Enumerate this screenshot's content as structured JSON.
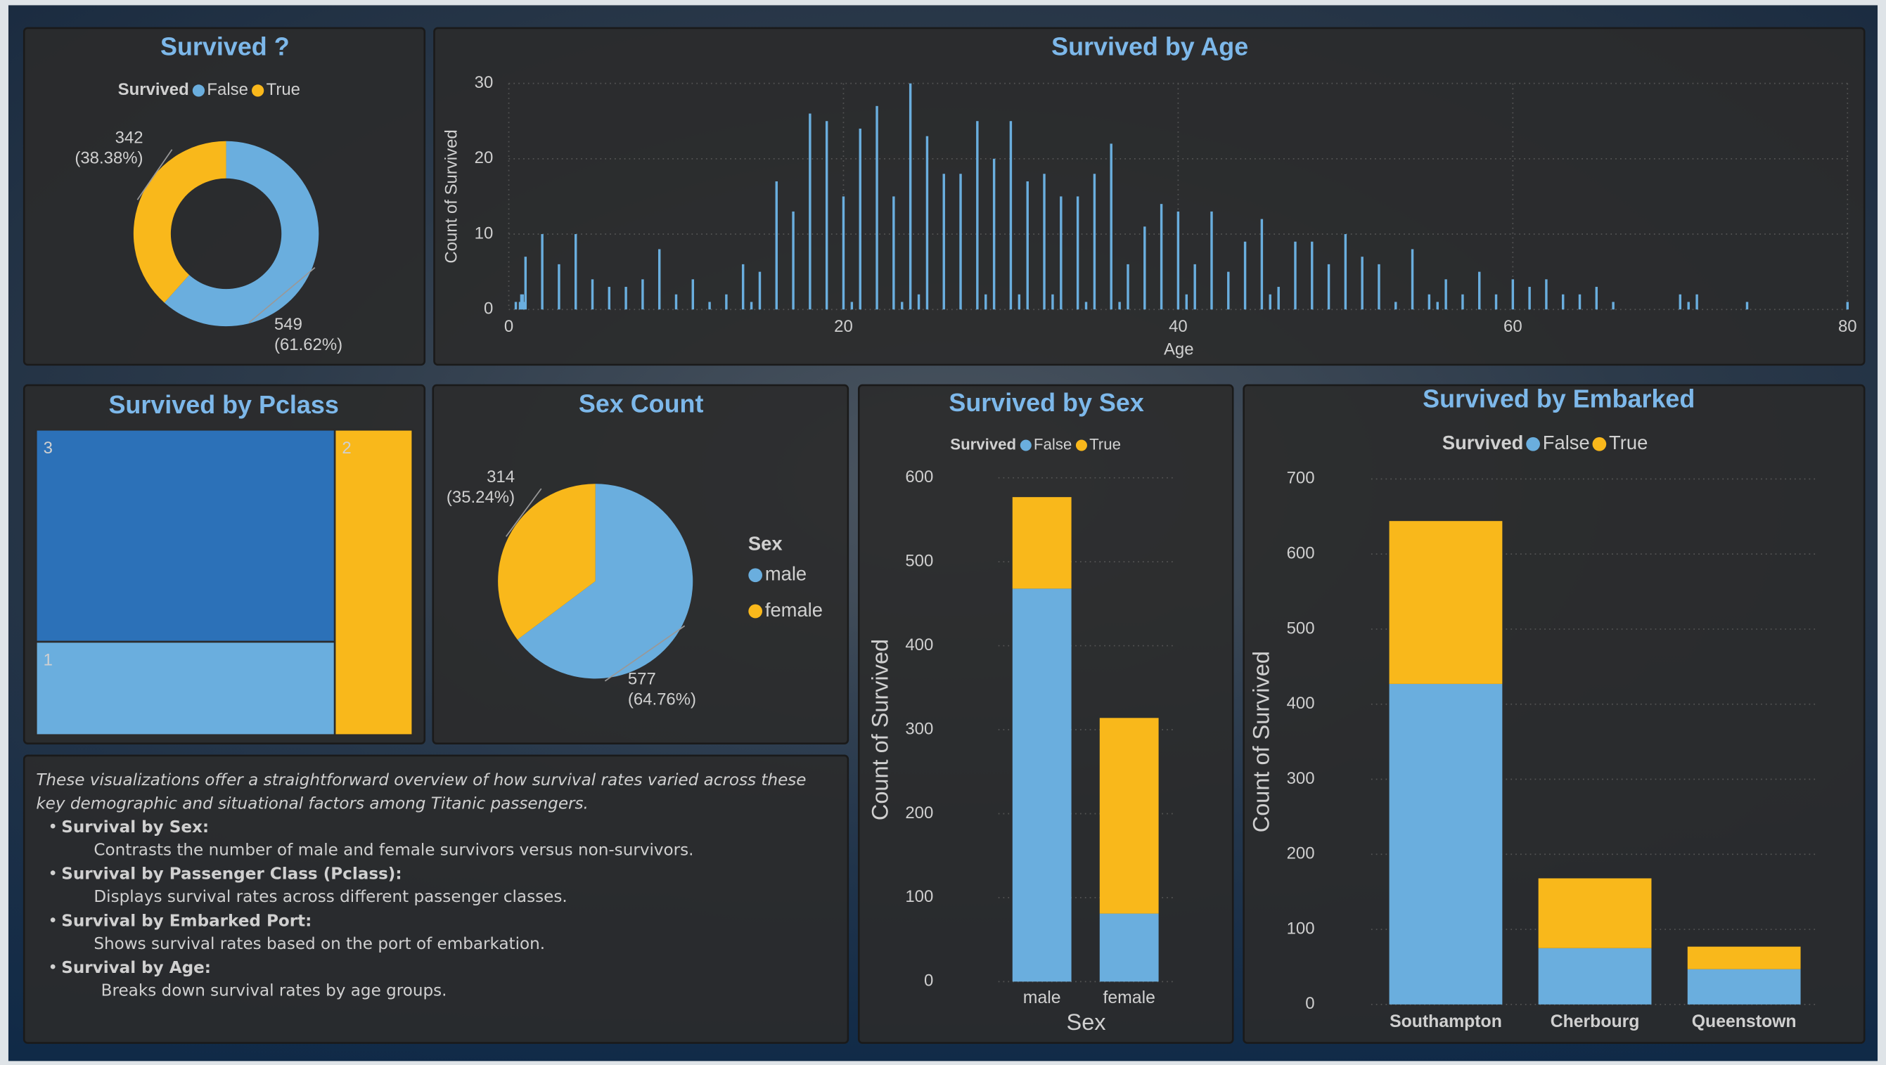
{
  "chart_data": [
    {
      "type": "donut",
      "title": "Survived ?",
      "legend_title": "Survived",
      "categories": [
        "False",
        "True"
      ],
      "values": [
        549,
        342
      ],
      "percents": [
        61.62,
        38.38
      ],
      "percent_labels": [
        "(61.62%)",
        "(38.38%)"
      ],
      "colors": [
        "#6aaede",
        "#f9b81b"
      ]
    },
    {
      "type": "bar",
      "title": "Survived by Age",
      "x_label": "Age",
      "y_label": "Count of Survived",
      "x": [
        0.42,
        0.67,
        0.75,
        0.83,
        0.92,
        1,
        2,
        3,
        4,
        5,
        6,
        7,
        8,
        9,
        10,
        11,
        12,
        13,
        14,
        14.5,
        15,
        16,
        17,
        18,
        19,
        20,
        20.5,
        21,
        22,
        23,
        23.5,
        24,
        24.5,
        25,
        26,
        27,
        28,
        28.5,
        29,
        30,
        30.5,
        31,
        32,
        32.5,
        33,
        34,
        34.5,
        35,
        36,
        36.5,
        37,
        38,
        39,
        40,
        40.5,
        41,
        42,
        43,
        44,
        45,
        45.5,
        46,
        47,
        48,
        49,
        50,
        51,
        52,
        53,
        54,
        55,
        55.5,
        56,
        57,
        58,
        59,
        60,
        61,
        62,
        63,
        64,
        65,
        66,
        70,
        70.5,
        71,
        74,
        80
      ],
      "values": [
        1,
        1,
        2,
        2,
        1,
        7,
        10,
        6,
        10,
        4,
        3,
        3,
        4,
        8,
        2,
        4,
        1,
        2,
        6,
        1,
        5,
        17,
        13,
        26,
        25,
        15,
        1,
        24,
        27,
        15,
        1,
        30,
        2,
        23,
        18,
        18,
        25,
        2,
        20,
        25,
        2,
        17,
        18,
        2,
        15,
        15,
        1,
        18,
        22,
        1,
        6,
        11,
        14,
        13,
        2,
        6,
        13,
        5,
        9,
        12,
        2,
        3,
        9,
        9,
        6,
        10,
        7,
        6,
        1,
        8,
        2,
        1,
        4,
        2,
        5,
        2,
        4,
        3,
        4,
        2,
        2,
        3,
        1,
        2,
        1,
        2,
        1,
        1
      ],
      "color": "#6aaede",
      "xlim": [
        0,
        80
      ],
      "xticks": [
        0,
        20,
        40,
        60,
        80
      ],
      "ylim": [
        0,
        30
      ],
      "yticks": [
        0,
        10,
        20,
        30
      ],
      "grid": true
    },
    {
      "type": "treemap",
      "title": "Survived by Pclass",
      "categories": [
        "3",
        "1",
        "2"
      ],
      "values": [
        491,
        216,
        184
      ],
      "colors": [
        "#2c71b8",
        "#6aaede",
        "#f9b81b"
      ]
    },
    {
      "type": "pie",
      "title": "Sex Count",
      "legend_title": "Sex",
      "categories": [
        "male",
        "female"
      ],
      "values": [
        577,
        314
      ],
      "percents": [
        64.76,
        35.24
      ],
      "percent_labels": [
        "(64.76%)",
        "(35.24%)"
      ],
      "colors": [
        "#6aaede",
        "#f9b81b"
      ]
    },
    {
      "type": "stacked_bar",
      "title": "Survived by Sex",
      "legend_title": "Survived",
      "x_label": "Sex",
      "y_label": "Count of Survived",
      "categories": [
        "male",
        "female"
      ],
      "series": [
        {
          "name": "False",
          "color": "#6aaede",
          "values": [
            468,
            81
          ]
        },
        {
          "name": "True",
          "color": "#f9b81b",
          "values": [
            109,
            233
          ]
        }
      ],
      "ylim": [
        0,
        600
      ],
      "yticks": [
        0,
        100,
        200,
        300,
        400,
        500,
        600
      ],
      "grid": true
    },
    {
      "type": "stacked_bar",
      "title": "Survived by Embarked",
      "legend_title": "Survived",
      "y_label": "Count of Survived",
      "categories": [
        "Southampton",
        "Cherbourg",
        "Queenstown"
      ],
      "series": [
        {
          "name": "False",
          "color": "#6aaede",
          "values": [
            427,
            75,
            47
          ]
        },
        {
          "name": "True",
          "color": "#f9b81b",
          "values": [
            217,
            93,
            30
          ]
        }
      ],
      "ylim": [
        0,
        700
      ],
      "yticks": [
        0,
        100,
        200,
        300,
        400,
        500,
        600,
        700
      ],
      "grid": true
    }
  ],
  "notes": {
    "intro": [
      "These visualizations offer a straightforward overview of how survival rates varied across these",
      "key demographic and situational factors among Titanic passengers."
    ],
    "items": [
      {
        "heading": "Survival by Sex:",
        "text": "Contrasts the number of male and female survivors versus non-survivors."
      },
      {
        "heading": "Survival by Passenger Class (Pclass):",
        "text": "Displays survival rates across different passenger classes."
      },
      {
        "heading": "Survival by Embarked Port:",
        "text": "Shows survival rates based on the port of embarkation."
      },
      {
        "heading": "Survival by Age:",
        "text": "Breaks down survival rates by age groups."
      }
    ]
  }
}
